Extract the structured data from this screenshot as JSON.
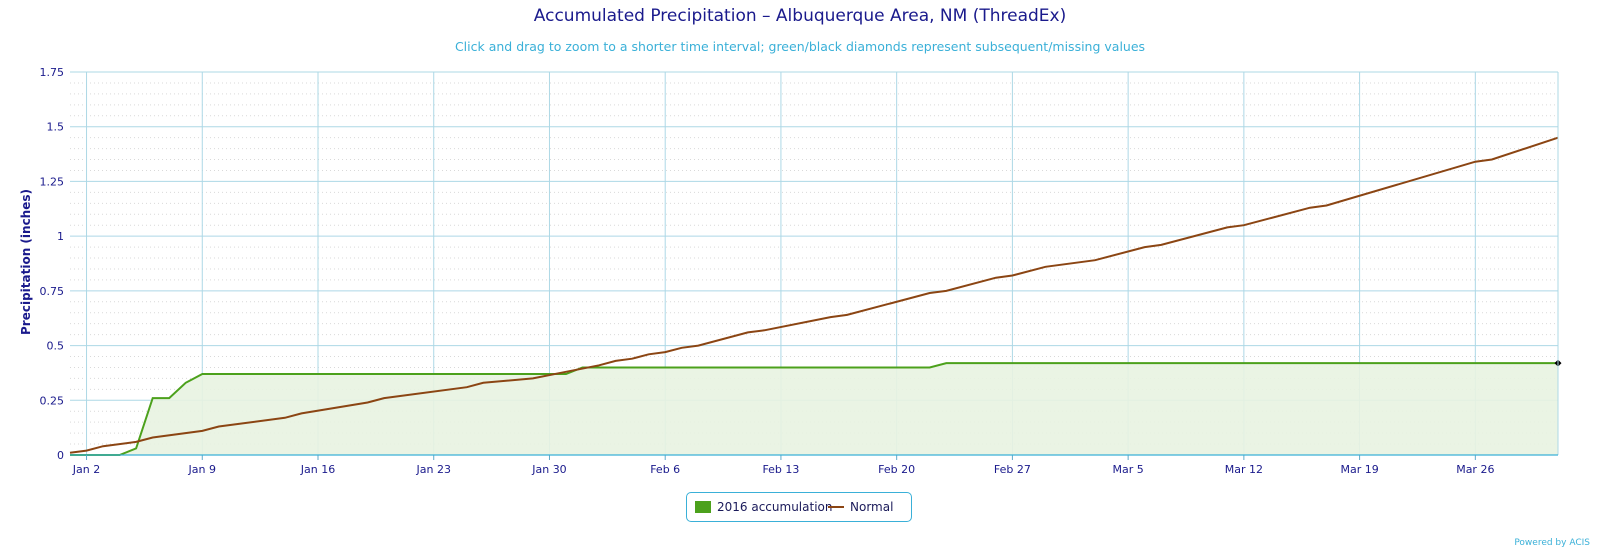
{
  "colors": {
    "accumulation": "#4ca11c",
    "accumulation_fill": "#e8f3e1",
    "normal": "#8b4513",
    "grid": "#add8e6",
    "axis_text": "#1a1a8c",
    "title": "#1a1a8c",
    "subtitle": "#3ab0d8"
  },
  "chart_data": {
    "type": "line",
    "title": "Accumulated Precipitation – Albuquerque Area, NM (ThreadEx)",
    "subtitle": "Click and drag to zoom to a shorter time interval; green/black diamonds represent subsequent/missing values",
    "ylabel": "Precipitation (inches)",
    "xlabel": "",
    "ylim": [
      0,
      1.75
    ],
    "xlim": [
      "2016-01-01",
      "2016-03-31"
    ],
    "yticks": [
      "0",
      "0.25",
      "0.5",
      "0.75",
      "1",
      "1.25",
      "1.5",
      "1.75"
    ],
    "xticks": [
      "Jan 2",
      "Jan 9",
      "Jan 16",
      "Jan 23",
      "Jan 30",
      "Feb 6",
      "Feb 13",
      "Feb 20",
      "Feb 27",
      "Mar 5",
      "Mar 12",
      "Mar 19",
      "Mar 26"
    ],
    "grid": true,
    "legend_position": "bottom-center",
    "series": [
      {
        "name": "2016 accumulation",
        "style": "area",
        "points": [
          [
            "2016-01-01",
            0
          ],
          [
            "2016-01-04",
            0
          ],
          [
            "2016-01-05",
            0.03
          ],
          [
            "2016-01-06",
            0.26
          ],
          [
            "2016-01-07",
            0.26
          ],
          [
            "2016-01-08",
            0.33
          ],
          [
            "2016-01-09",
            0.37
          ],
          [
            "2016-01-30",
            0.37
          ],
          [
            "2016-01-31",
            0.37
          ],
          [
            "2016-02-01",
            0.4
          ],
          [
            "2016-02-22",
            0.4
          ],
          [
            "2016-02-23",
            0.42
          ],
          [
            "2016-03-31",
            0.42
          ]
        ],
        "end_marker": {
          "date": "2016-03-31",
          "value": 0.42,
          "shape": "diamond",
          "color": "#000000"
        }
      },
      {
        "name": "Normal",
        "style": "line",
        "points": [
          [
            "2016-01-01",
            0.01
          ],
          [
            "2016-01-02",
            0.02
          ],
          [
            "2016-01-03",
            0.04
          ],
          [
            "2016-01-05",
            0.06
          ],
          [
            "2016-01-06",
            0.08
          ],
          [
            "2016-01-09",
            0.11
          ],
          [
            "2016-01-10",
            0.13
          ],
          [
            "2016-01-14",
            0.17
          ],
          [
            "2016-01-15",
            0.19
          ],
          [
            "2016-01-19",
            0.24
          ],
          [
            "2016-01-20",
            0.26
          ],
          [
            "2016-01-25",
            0.31
          ],
          [
            "2016-01-26",
            0.33
          ],
          [
            "2016-01-29",
            0.35
          ],
          [
            "2016-01-31",
            0.38
          ],
          [
            "2016-02-02",
            0.41
          ],
          [
            "2016-02-03",
            0.43
          ],
          [
            "2016-02-04",
            0.44
          ],
          [
            "2016-02-05",
            0.46
          ],
          [
            "2016-02-06",
            0.47
          ],
          [
            "2016-02-07",
            0.49
          ],
          [
            "2016-02-08",
            0.5
          ],
          [
            "2016-02-11",
            0.56
          ],
          [
            "2016-02-12",
            0.57
          ],
          [
            "2016-02-16",
            0.63
          ],
          [
            "2016-02-17",
            0.64
          ],
          [
            "2016-02-22",
            0.74
          ],
          [
            "2016-02-23",
            0.75
          ],
          [
            "2016-02-26",
            0.81
          ],
          [
            "2016-02-27",
            0.82
          ],
          [
            "2016-02-29",
            0.86
          ],
          [
            "2016-03-03",
            0.89
          ],
          [
            "2016-03-06",
            0.95
          ],
          [
            "2016-03-07",
            0.96
          ],
          [
            "2016-03-11",
            1.04
          ],
          [
            "2016-03-12",
            1.05
          ],
          [
            "2016-03-16",
            1.13
          ],
          [
            "2016-03-17",
            1.14
          ],
          [
            "2016-03-26",
            1.34
          ],
          [
            "2016-03-27",
            1.35
          ],
          [
            "2016-03-31",
            1.45
          ]
        ]
      }
    ]
  },
  "legend": {
    "accumulation_label": "2016 accumulation",
    "normal_label": "Normal"
  },
  "footer": {
    "credit": "Powered by ACIS"
  }
}
